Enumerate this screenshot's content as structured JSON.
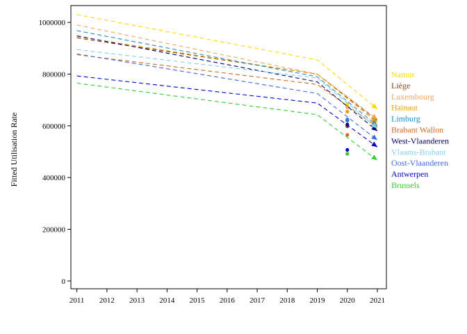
{
  "chart_data": {
    "type": "line",
    "title": "",
    "xlabel": "",
    "ylabel": "Fitted Utilisation Rate",
    "xlim": [
      2010.8,
      2021.3
    ],
    "ylim": [
      -30000,
      1065000
    ],
    "x_ticks": [
      "2011",
      "2012",
      "2013",
      "2014",
      "2015",
      "2016",
      "2017",
      "2018",
      "2019",
      "2020",
      "2021"
    ],
    "y_ticks": [
      "0",
      "200000",
      "400000",
      "600000",
      "800000",
      "1000000"
    ],
    "grid": false,
    "legend_position": "right",
    "series": [
      {
        "name": "Namur",
        "color": "#FFD700",
        "line": [
          [
            2011,
            1030000
          ],
          [
            2019,
            855000
          ],
          [
            2021,
            665000
          ]
        ],
        "point_2020": 685000
      },
      {
        "name": "Liège",
        "color": "#8B4513",
        "line": [
          [
            2011,
            940000
          ],
          [
            2019,
            800000
          ],
          [
            2021,
            620000
          ]
        ],
        "point_2020": 598000
      },
      {
        "name": "Luxembourg",
        "color": "#F4A460",
        "line": [
          [
            2011,
            990000
          ],
          [
            2019,
            800000
          ],
          [
            2021,
            625000
          ]
        ],
        "point_2020": 672000
      },
      {
        "name": "Hainaut",
        "color": "#E6A100",
        "line": [
          [
            2011,
            945000
          ],
          [
            2019,
            800000
          ],
          [
            2021,
            612000
          ]
        ],
        "point_2020": 655000
      },
      {
        "name": "Limburg",
        "color": "#1E90C8",
        "line": [
          [
            2011,
            968000
          ],
          [
            2019,
            790000
          ],
          [
            2021,
            600000
          ]
        ],
        "point_2020": 625000
      },
      {
        "name": "Brabant Wallon",
        "color": "#D2691E",
        "line": [
          [
            2011,
            875000
          ],
          [
            2019,
            760000
          ],
          [
            2021,
            595000
          ]
        ],
        "point_2020": 565000
      },
      {
        "name": "West-Vlaanderen",
        "color": "#00006E",
        "line": [
          [
            2011,
            948000
          ],
          [
            2019,
            770000
          ],
          [
            2021,
            580000
          ]
        ],
        "point_2020": 605000
      },
      {
        "name": "Vlaams-Brabant",
        "color": "#87CEEB",
        "line": [
          [
            2011,
            895000
          ],
          [
            2019,
            785000
          ],
          [
            2021,
            590000
          ]
        ],
        "point_2020": 620000
      },
      {
        "name": "Oost-Vlaanderen",
        "color": "#4169E1",
        "line": [
          [
            2011,
            878000
          ],
          [
            2019,
            725000
          ],
          [
            2021,
            545000
          ]
        ],
        "point_2020": 620000
      },
      {
        "name": "Antwerpen",
        "color": "#0000CD",
        "line": [
          [
            2011,
            793000
          ],
          [
            2019,
            688000
          ],
          [
            2021,
            518000
          ]
        ],
        "point_2020": 507000
      },
      {
        "name": "Brussels",
        "color": "#32CD32",
        "line": [
          [
            2011,
            765000
          ],
          [
            2019,
            643000
          ],
          [
            2021,
            467000
          ]
        ],
        "point_2020": 492000
      }
    ]
  }
}
